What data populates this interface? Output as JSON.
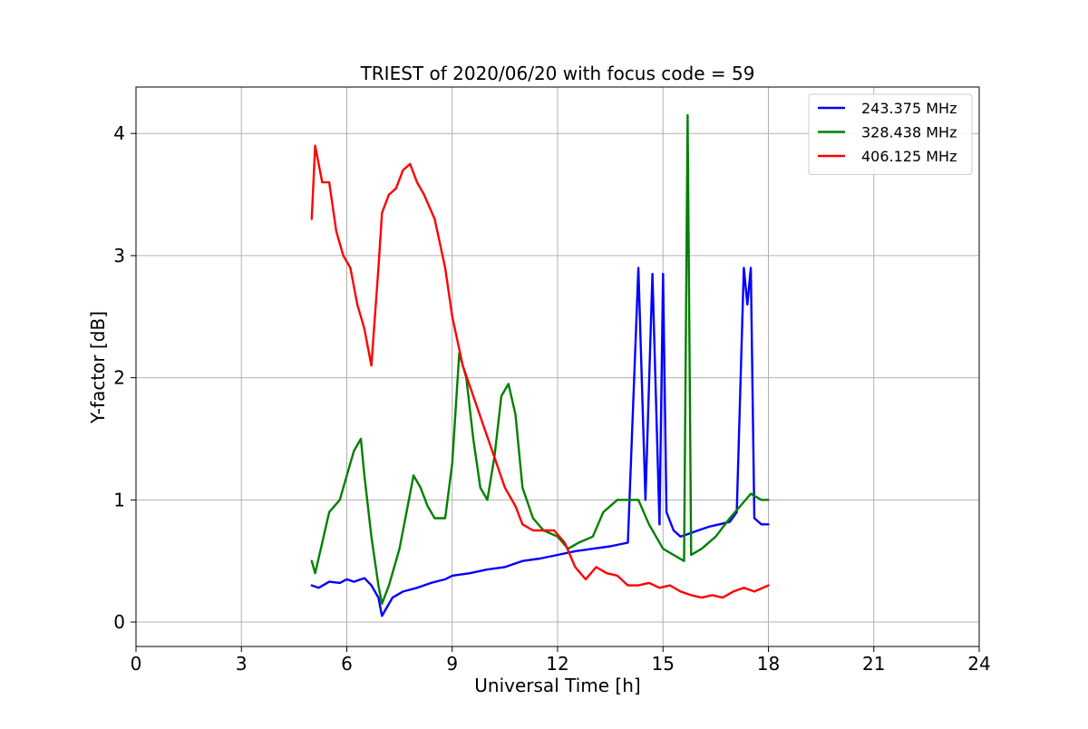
{
  "chart_data": {
    "type": "line",
    "title": "TRIEST of 2020/06/20 with focus code = 59",
    "xlabel": "Universal Time [h]",
    "ylabel": "Y-factor [dB]",
    "xlim": [
      0,
      24
    ],
    "ylim": [
      -0.2,
      4.38
    ],
    "xticks": [
      0,
      3,
      6,
      9,
      12,
      15,
      18,
      21,
      24
    ],
    "yticks": [
      0,
      1,
      2,
      3,
      4
    ],
    "grid": true,
    "legend_position": "top-right",
    "series": [
      {
        "name": "243.375 MHz",
        "color": "#0000ff",
        "x": [
          5.0,
          5.2,
          5.5,
          5.8,
          6.0,
          6.2,
          6.5,
          6.7,
          6.9,
          7.0,
          7.1,
          7.3,
          7.6,
          8.0,
          8.4,
          8.8,
          9.0,
          9.5,
          10.0,
          10.5,
          11.0,
          11.5,
          12.0,
          12.5,
          13.0,
          13.5,
          14.0,
          14.3,
          14.5,
          14.7,
          14.9,
          15.0,
          15.1,
          15.3,
          15.5,
          15.7,
          16.0,
          16.3,
          16.6,
          16.9,
          17.1,
          17.3,
          17.4,
          17.5,
          17.6,
          17.8,
          18.0
        ],
        "y": [
          0.3,
          0.28,
          0.33,
          0.32,
          0.35,
          0.33,
          0.36,
          0.3,
          0.2,
          0.05,
          0.1,
          0.2,
          0.25,
          0.28,
          0.32,
          0.35,
          0.38,
          0.4,
          0.43,
          0.45,
          0.5,
          0.52,
          0.55,
          0.58,
          0.6,
          0.62,
          0.65,
          2.9,
          1.0,
          2.85,
          0.8,
          2.85,
          0.9,
          0.75,
          0.7,
          0.72,
          0.75,
          0.78,
          0.8,
          0.82,
          0.9,
          2.9,
          2.6,
          2.9,
          0.85,
          0.8,
          0.8
        ]
      },
      {
        "name": "328.438 MHz",
        "color": "#008000",
        "x": [
          5.0,
          5.1,
          5.3,
          5.5,
          5.8,
          6.0,
          6.2,
          6.4,
          6.5,
          6.7,
          6.9,
          7.0,
          7.2,
          7.5,
          7.7,
          7.9,
          8.1,
          8.3,
          8.5,
          8.8,
          9.0,
          9.2,
          9.4,
          9.6,
          9.8,
          10.0,
          10.2,
          10.4,
          10.6,
          10.8,
          11.0,
          11.3,
          11.6,
          12.0,
          12.3,
          12.6,
          13.0,
          13.3,
          13.7,
          14.0,
          14.3,
          14.6,
          15.0,
          15.3,
          15.6,
          15.7,
          15.8,
          16.1,
          16.5,
          16.9,
          17.2,
          17.5,
          17.8,
          18.0
        ],
        "y": [
          0.5,
          0.4,
          0.65,
          0.9,
          1.0,
          1.2,
          1.4,
          1.5,
          1.2,
          0.7,
          0.3,
          0.15,
          0.3,
          0.6,
          0.9,
          1.2,
          1.1,
          0.95,
          0.85,
          0.85,
          1.3,
          2.2,
          2.0,
          1.5,
          1.1,
          1.0,
          1.35,
          1.85,
          1.95,
          1.7,
          1.1,
          0.85,
          0.75,
          0.7,
          0.6,
          0.65,
          0.7,
          0.9,
          1.0,
          1.0,
          1.0,
          0.8,
          0.6,
          0.55,
          0.5,
          4.15,
          0.55,
          0.6,
          0.7,
          0.85,
          0.95,
          1.05,
          1.0,
          1.0
        ]
      },
      {
        "name": "406.125 MHz",
        "color": "#ff0000",
        "x": [
          5.0,
          5.1,
          5.3,
          5.5,
          5.7,
          5.9,
          6.1,
          6.3,
          6.5,
          6.7,
          6.8,
          6.9,
          7.0,
          7.2,
          7.4,
          7.6,
          7.8,
          8.0,
          8.2,
          8.5,
          8.8,
          9.0,
          9.3,
          9.6,
          9.9,
          10.2,
          10.5,
          10.8,
          11.0,
          11.3,
          11.6,
          11.9,
          12.2,
          12.5,
          12.8,
          13.1,
          13.4,
          13.7,
          14.0,
          14.3,
          14.6,
          14.9,
          15.2,
          15.5,
          15.8,
          16.1,
          16.4,
          16.7,
          17.0,
          17.3,
          17.6,
          18.0
        ],
        "y": [
          3.3,
          3.9,
          3.6,
          3.6,
          3.2,
          3.0,
          2.9,
          2.6,
          2.4,
          2.1,
          2.5,
          2.9,
          3.35,
          3.5,
          3.55,
          3.7,
          3.75,
          3.6,
          3.5,
          3.3,
          2.9,
          2.5,
          2.1,
          1.85,
          1.6,
          1.35,
          1.1,
          0.95,
          0.8,
          0.75,
          0.75,
          0.75,
          0.65,
          0.45,
          0.35,
          0.45,
          0.4,
          0.38,
          0.3,
          0.3,
          0.32,
          0.28,
          0.3,
          0.25,
          0.22,
          0.2,
          0.22,
          0.2,
          0.25,
          0.28,
          0.25,
          0.3
        ]
      }
    ]
  }
}
